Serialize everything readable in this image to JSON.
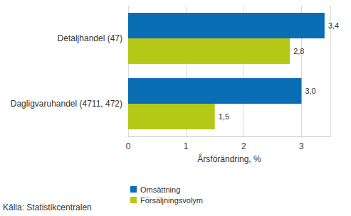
{
  "chart_data": {
    "type": "bar",
    "orientation": "horizontal",
    "x_label": "Årsförändring, %",
    "categories": [
      "Detaljhandel (47)",
      "Dagligvaruhandel (4711, 472)"
    ],
    "series": [
      {
        "name": "Omsättning",
        "color": "#0a6eb4",
        "values": [
          3.4,
          3.0
        ],
        "value_labels": [
          "3,4",
          "3,0"
        ]
      },
      {
        "name": "Försäljningsvolym",
        "color": "#b4c818",
        "values": [
          2.8,
          1.5
        ],
        "value_labels": [
          "2,8",
          "1,5"
        ]
      }
    ],
    "xlim": [
      0,
      3.5
    ],
    "xticks": [
      0,
      1,
      2,
      3
    ],
    "grid": true,
    "data_labels": true,
    "legend": "bottom-left",
    "annotations": [
      "Källa: Statistikcentralen"
    ]
  }
}
